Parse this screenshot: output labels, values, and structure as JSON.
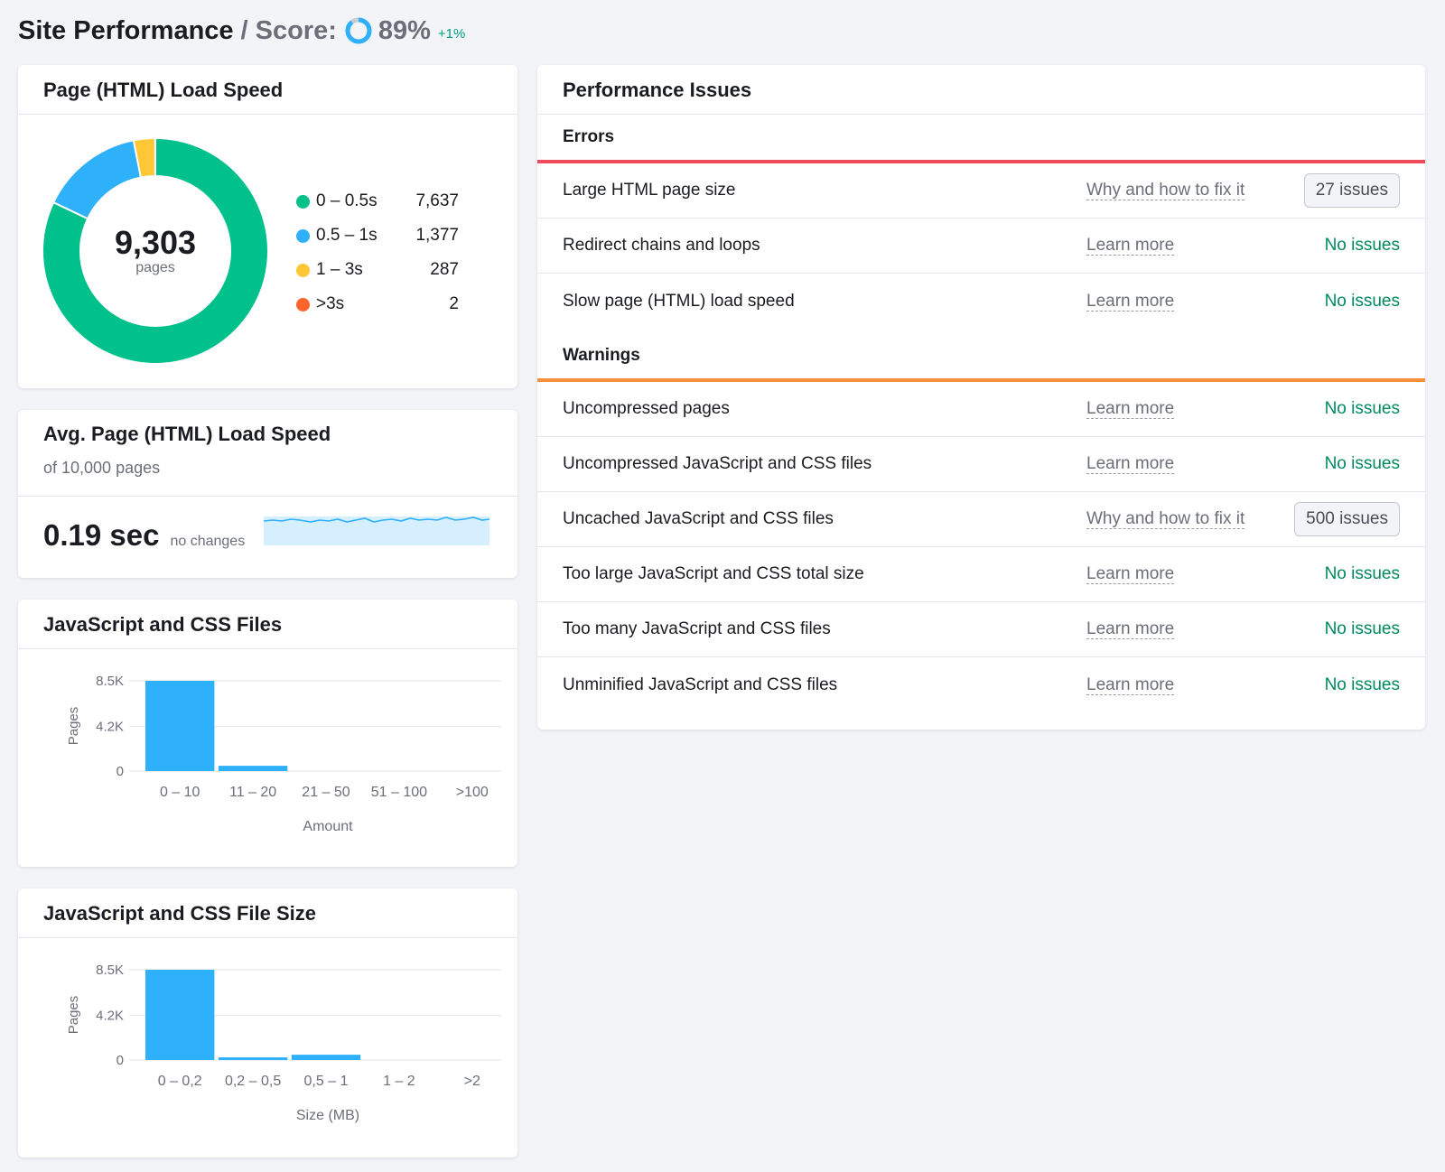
{
  "header": {
    "title": "Site Performance",
    "separator": "/",
    "score_label": "Score:",
    "score_value": "89%",
    "score_fraction": 0.89,
    "delta": "+1%"
  },
  "load_speed": {
    "title": "Page (HTML) Load Speed",
    "total": "9,303",
    "unit": "pages",
    "legend": [
      {
        "label": "0 – 0.5s",
        "value": "7,637",
        "count": 7637,
        "color": "#00c08b"
      },
      {
        "label": "0.5 – 1s",
        "value": "1,377",
        "count": 1377,
        "color": "#2fb0fa"
      },
      {
        "label": "1 – 3s",
        "value": "287",
        "count": 287,
        "color": "#ffc736"
      },
      {
        "label": ">3s",
        "value": "2",
        "count": 2,
        "color": "#ff642d"
      }
    ]
  },
  "avg_speed": {
    "title": "Avg. Page (HTML) Load Speed",
    "subtitle": "of 10,000 pages",
    "value": "0.19 sec",
    "note": "no changes"
  },
  "js_css_files": {
    "title": "JavaScript and CSS Files",
    "chart_data": {
      "type": "bar",
      "categories": [
        "0 – 10",
        "11 – 20",
        "21 – 50",
        "51 – 100",
        ">100"
      ],
      "values": [
        8500,
        500,
        0,
        0,
        0
      ],
      "ylabel": "Pages",
      "xlabel": "Amount",
      "yticks": [
        "0",
        "4.2K",
        "8.5K"
      ],
      "ytick_values": [
        0,
        4200,
        8500
      ],
      "ylim": [
        0,
        8500
      ],
      "color": "#2fb0fa"
    }
  },
  "js_css_size": {
    "title": "JavaScript and CSS File Size",
    "chart_data": {
      "type": "bar",
      "categories": [
        "0 – 0,2",
        "0,2 – 0,5",
        "0,5 – 1",
        "1 – 2",
        ">2"
      ],
      "values": [
        8500,
        250,
        500,
        0,
        0
      ],
      "ylabel": "Pages",
      "xlabel": "Size (MB)",
      "yticks": [
        "0",
        "4.2K",
        "8.5K"
      ],
      "ytick_values": [
        0,
        4200,
        8500
      ],
      "ylim": [
        0,
        8500
      ],
      "color": "#2fb0fa"
    }
  },
  "issues": {
    "title": "Performance Issues",
    "errors": {
      "title": "Errors",
      "color": "#ee4a5b",
      "items": [
        {
          "name": "Large HTML page size",
          "link": "Why and how to fix it",
          "badge": "27 issues"
        },
        {
          "name": "Redirect chains and loops",
          "link": "Learn more",
          "status": "No issues"
        },
        {
          "name": "Slow page (HTML) load speed",
          "link": "Learn more",
          "status": "No issues"
        }
      ]
    },
    "warnings": {
      "title": "Warnings",
      "color": "#f5903d",
      "items": [
        {
          "name": "Uncompressed pages",
          "link": "Learn more",
          "status": "No issues"
        },
        {
          "name": "Uncompressed JavaScript and CSS files",
          "link": "Learn more",
          "status": "No issues"
        },
        {
          "name": "Uncached JavaScript and CSS files",
          "link": "Why and how to fix it",
          "badge": "500 issues"
        },
        {
          "name": "Too large JavaScript and CSS total size",
          "link": "Learn more",
          "status": "No issues"
        },
        {
          "name": "Too many JavaScript and CSS files",
          "link": "Learn more",
          "status": "No issues"
        },
        {
          "name": "Unminified JavaScript and CSS files",
          "link": "Learn more",
          "status": "No issues"
        }
      ]
    }
  }
}
